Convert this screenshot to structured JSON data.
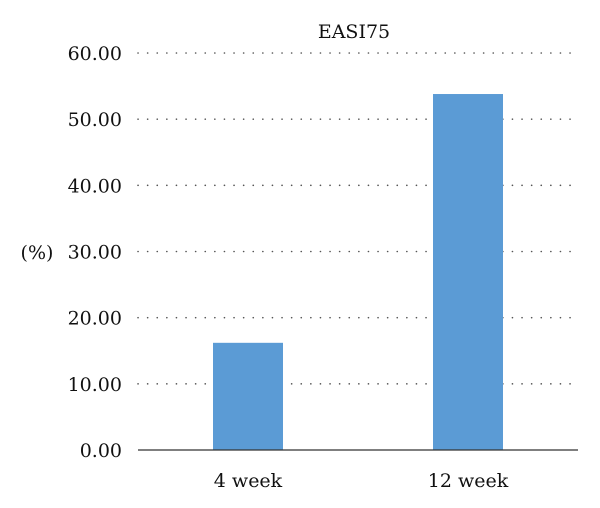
{
  "chart_data": {
    "type": "bar",
    "title": "EASI75",
    "xlabel": "",
    "ylabel": "(%)",
    "categories": [
      "4 week",
      "12 week"
    ],
    "values": [
      16.2,
      53.8
    ],
    "ylim": [
      0,
      60
    ],
    "yticks": [
      "0.00",
      "10.00",
      "20.00",
      "30.00",
      "40.00",
      "50.00",
      "60.00"
    ],
    "grid": true,
    "grid_style": "dotted",
    "legend": "none",
    "bar_color": "#5b9bd5"
  }
}
